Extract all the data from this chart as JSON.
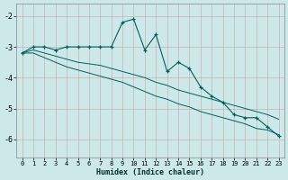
{
  "xlabel": "Humidex (Indice chaleur)",
  "background_color": "#cce8e8",
  "grid_color": "#aacccc",
  "line_color": "#006060",
  "xlim": [
    -0.5,
    23.5
  ],
  "ylim": [
    -6.6,
    -1.6
  ],
  "xticks": [
    0,
    1,
    2,
    3,
    4,
    5,
    6,
    7,
    8,
    9,
    10,
    11,
    12,
    13,
    14,
    15,
    16,
    17,
    18,
    19,
    20,
    21,
    22,
    23
  ],
  "yticks": [
    -6,
    -5,
    -4,
    -3,
    -2
  ],
  "x": [
    0,
    1,
    2,
    3,
    4,
    5,
    6,
    7,
    8,
    9,
    10,
    11,
    12,
    13,
    14,
    15,
    16,
    17,
    18,
    19,
    20,
    21,
    22,
    23
  ],
  "y_main": [
    -3.2,
    -3.0,
    -3.0,
    -3.1,
    -3.0,
    -3.0,
    -3.0,
    -3.0,
    -3.0,
    -2.2,
    -2.1,
    -3.1,
    -2.6,
    -3.8,
    -3.5,
    -3.7,
    -4.3,
    -4.6,
    -4.8,
    -5.2,
    -5.3,
    -5.3,
    -5.6,
    -5.9
  ],
  "y_line1": [
    -3.2,
    -3.1,
    -3.2,
    -3.3,
    -3.4,
    -3.5,
    -3.55,
    -3.6,
    -3.7,
    -3.8,
    -3.9,
    -4.0,
    -4.15,
    -4.25,
    -4.4,
    -4.5,
    -4.6,
    -4.7,
    -4.8,
    -4.9,
    -5.0,
    -5.1,
    -5.2,
    -5.35
  ],
  "y_line2": [
    -3.2,
    -3.2,
    -3.35,
    -3.5,
    -3.65,
    -3.75,
    -3.85,
    -3.95,
    -4.05,
    -4.15,
    -4.3,
    -4.45,
    -4.6,
    -4.7,
    -4.85,
    -4.95,
    -5.1,
    -5.2,
    -5.3,
    -5.4,
    -5.5,
    -5.65,
    -5.7,
    -5.85
  ]
}
